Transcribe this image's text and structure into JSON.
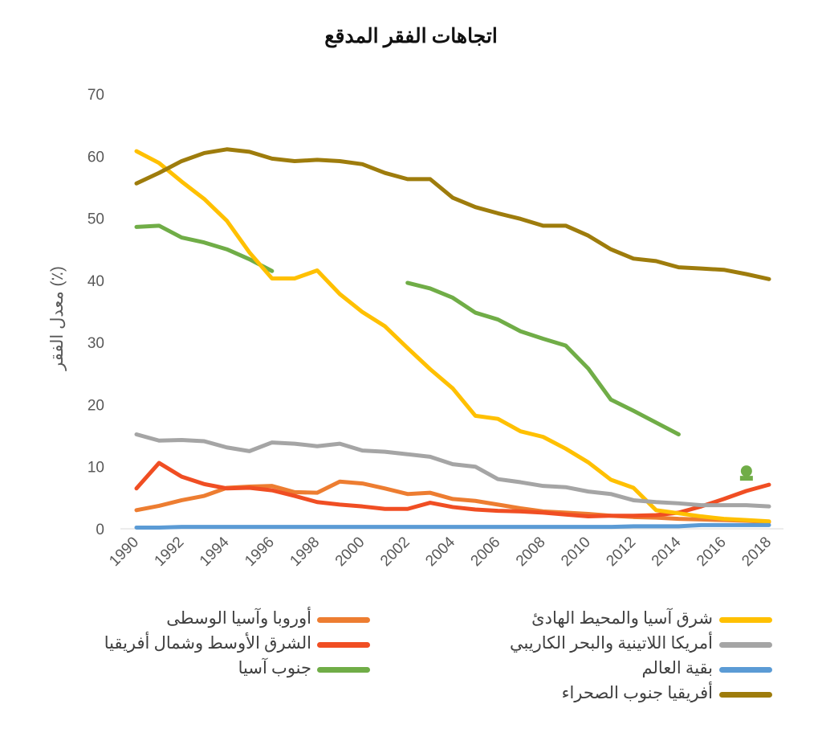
{
  "chart_data": {
    "type": "line",
    "title": "اتجاهات الفقر المدقع",
    "ylabel": "معدل الفقر (٪)",
    "xlabel": "",
    "ylim": [
      0,
      70
    ],
    "yticks": [
      0,
      10,
      20,
      30,
      40,
      50,
      60,
      70
    ],
    "xlim": [
      1990,
      2018
    ],
    "xticks": [
      1990,
      1992,
      1994,
      1996,
      1998,
      2000,
      2002,
      2004,
      2006,
      2008,
      2010,
      2012,
      2014,
      2016,
      2018
    ],
    "grid": false,
    "legend_position": "bottom",
    "series": [
      {
        "name": "أوروبا وآسيا الوسطى",
        "color": "#ED7D31",
        "x": [
          1990,
          1991,
          1992,
          1993,
          1994,
          1995,
          1996,
          1997,
          1998,
          1999,
          2000,
          2001,
          2002,
          2003,
          2004,
          2005,
          2006,
          2007,
          2008,
          2009,
          2010,
          2011,
          2012,
          2013,
          2014,
          2015,
          2016,
          2017,
          2018
        ],
        "y": [
          3.0,
          3.7,
          4.6,
          5.3,
          6.6,
          6.8,
          6.9,
          5.9,
          5.8,
          7.6,
          7.3,
          6.5,
          5.6,
          5.8,
          4.8,
          4.5,
          3.9,
          3.3,
          2.8,
          2.6,
          2.4,
          2.1,
          1.9,
          1.8,
          1.6,
          1.5,
          1.4,
          1.3,
          1.1
        ]
      },
      {
        "name": "الشرق الأوسط وشمال أفريقيا",
        "color": "#F04E23",
        "x": [
          1990,
          1991,
          1992,
          1993,
          1994,
          1995,
          1996,
          1997,
          1998,
          1999,
          2000,
          2001,
          2002,
          2003,
          2004,
          2005,
          2006,
          2007,
          2008,
          2009,
          2010,
          2011,
          2012,
          2013,
          2014,
          2015,
          2016,
          2017,
          2018
        ],
        "y": [
          6.5,
          10.6,
          8.4,
          7.2,
          6.5,
          6.6,
          6.2,
          5.3,
          4.3,
          3.9,
          3.6,
          3.2,
          3.2,
          4.2,
          3.5,
          3.1,
          2.9,
          2.8,
          2.6,
          2.3,
          2.0,
          2.1,
          2.1,
          2.2,
          2.6,
          3.6,
          4.8,
          6.1,
          7.1
        ]
      },
      {
        "name": "جنوب آسيا",
        "color": "#70AD47",
        "x": [
          1990,
          1991,
          1992,
          1993,
          1994,
          1995,
          1996,
          1997,
          1998,
          1999,
          2000,
          2001,
          2002,
          2003,
          2004,
          2005,
          2006,
          2007,
          2008,
          2009,
          2010,
          2011,
          2012,
          2013,
          2014,
          2015,
          2016,
          2017,
          2018
        ],
        "y": [
          48.6,
          48.8,
          46.9,
          46.1,
          45.0,
          43.4,
          41.5,
          null,
          null,
          null,
          null,
          null,
          39.6,
          38.7,
          37.2,
          34.8,
          33.7,
          31.8,
          30.6,
          29.5,
          25.8,
          20.8,
          19.0,
          17.1,
          15.2,
          null,
          null,
          9.3,
          null
        ]
      },
      {
        "name": "شرق آسيا والمحيط الهادئ",
        "color": "#FFC000",
        "x": [
          1990,
          1991,
          1992,
          1993,
          1994,
          1995,
          1996,
          1997,
          1998,
          1999,
          2000,
          2001,
          2002,
          2003,
          2004,
          2005,
          2006,
          2007,
          2008,
          2009,
          2010,
          2011,
          2012,
          2013,
          2014,
          2015,
          2016,
          2017,
          2018
        ],
        "y": [
          60.8,
          58.9,
          55.9,
          53.1,
          49.6,
          44.5,
          40.3,
          40.3,
          41.6,
          37.8,
          34.9,
          32.6,
          29.1,
          25.7,
          22.6,
          18.2,
          17.7,
          15.7,
          14.8,
          12.9,
          10.7,
          7.9,
          6.6,
          3.0,
          2.5,
          2.0,
          1.6,
          1.4,
          1.2
        ]
      },
      {
        "name": "أمريكا اللاتينية والبحر الكاريبي",
        "color": "#A5A5A5",
        "x": [
          1990,
          1991,
          1992,
          1993,
          1994,
          1995,
          1996,
          1997,
          1998,
          1999,
          2000,
          2001,
          2002,
          2003,
          2004,
          2005,
          2006,
          2007,
          2008,
          2009,
          2010,
          2011,
          2012,
          2013,
          2014,
          2015,
          2016,
          2017,
          2018
        ],
        "y": [
          15.2,
          14.2,
          14.3,
          14.1,
          13.1,
          12.5,
          13.9,
          13.7,
          13.3,
          13.7,
          12.6,
          12.4,
          12.0,
          11.6,
          10.4,
          10.0,
          8.0,
          7.5,
          6.9,
          6.7,
          6.0,
          5.6,
          4.6,
          4.3,
          4.1,
          3.8,
          3.8,
          3.8,
          3.6
        ]
      },
      {
        "name": "بقية العالم",
        "color": "#5B9BD5",
        "x": [
          1990,
          1991,
          1992,
          1993,
          1994,
          1995,
          1996,
          1997,
          1998,
          1999,
          2000,
          2001,
          2002,
          2003,
          2004,
          2005,
          2006,
          2007,
          2008,
          2009,
          2010,
          2011,
          2012,
          2013,
          2014,
          2015,
          2016,
          2017,
          2018
        ],
        "y": [
          0.2,
          0.2,
          0.3,
          0.3,
          0.3,
          0.3,
          0.3,
          0.3,
          0.3,
          0.3,
          0.3,
          0.3,
          0.3,
          0.3,
          0.3,
          0.3,
          0.3,
          0.3,
          0.3,
          0.3,
          0.3,
          0.3,
          0.4,
          0.4,
          0.4,
          0.6,
          0.6,
          0.6,
          0.6
        ]
      },
      {
        "name": "أفريقيا جنوب الصحراء",
        "color": "#9E7C0C",
        "x": [
          1990,
          1991,
          1992,
          1993,
          1994,
          1995,
          1996,
          1997,
          1998,
          1999,
          2000,
          2001,
          2002,
          2003,
          2004,
          2005,
          2006,
          2007,
          2008,
          2009,
          2010,
          2011,
          2012,
          2013,
          2014,
          2015,
          2016,
          2017,
          2018
        ],
        "y": [
          55.6,
          57.3,
          59.2,
          60.5,
          61.1,
          60.7,
          59.6,
          59.2,
          59.4,
          59.2,
          58.7,
          57.3,
          56.3,
          56.3,
          53.3,
          51.8,
          50.8,
          49.9,
          48.8,
          48.8,
          47.2,
          45.0,
          43.5,
          43.1,
          42.1,
          41.9,
          41.7,
          41.0,
          40.2
        ]
      }
    ]
  },
  "legend": {
    "right_column": [
      "شرق آسيا والمحيط الهادئ",
      "أمريكا اللاتينية والبحر الكاريبي",
      "بقية العالم",
      "أفريقيا جنوب الصحراء"
    ],
    "left_column": [
      "أوروبا وآسيا الوسطى",
      "الشرق الأوسط وشمال أفريقيا",
      "جنوب آسيا"
    ]
  }
}
